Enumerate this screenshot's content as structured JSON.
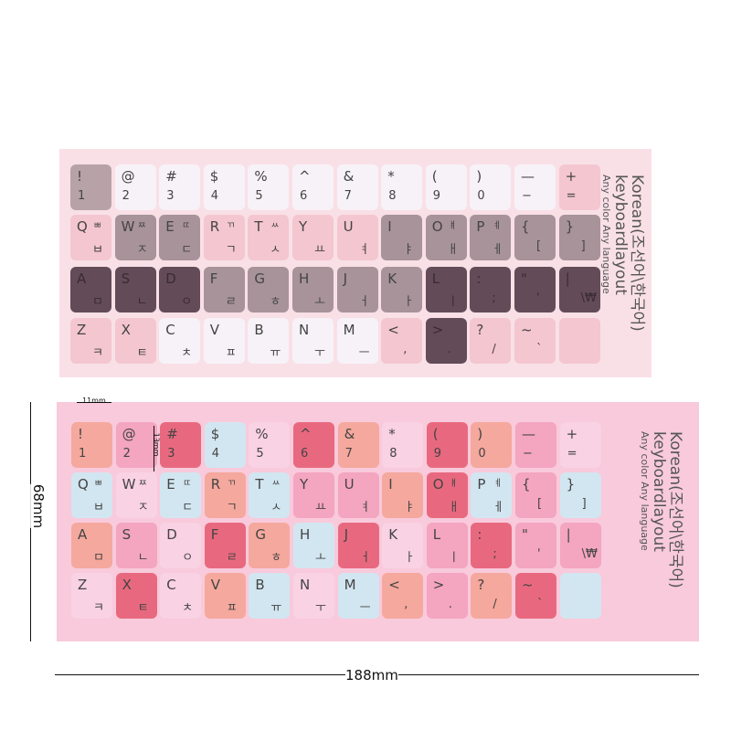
{
  "rows": [
    [
      [
        "!",
        "",
        "1"
      ],
      [
        "@",
        "",
        "2"
      ],
      [
        "#",
        "",
        "3"
      ],
      [
        "$",
        "",
        "4"
      ],
      [
        "%",
        "",
        "5"
      ],
      [
        "^",
        "",
        "6"
      ],
      [
        "&",
        "",
        "7"
      ],
      [
        "*",
        "",
        "8"
      ],
      [
        "(",
        "",
        "9"
      ],
      [
        ")",
        "",
        "0"
      ],
      [
        "—",
        "",
        "−"
      ],
      [
        "+",
        "",
        "="
      ]
    ],
    [
      [
        "Q",
        "ㅃ",
        "ㅂ"
      ],
      [
        "W",
        "ㅉ",
        "ㅈ"
      ],
      [
        "E",
        "ㄸ",
        "ㄷ"
      ],
      [
        "R",
        "ㄲ",
        "ㄱ"
      ],
      [
        "T",
        "ㅆ",
        "ㅅ"
      ],
      [
        "Y",
        "",
        "ㅛ"
      ],
      [
        "U",
        "",
        "ㅕ"
      ],
      [
        "I",
        "",
        "ㅑ"
      ],
      [
        "O",
        "ㅒ",
        "ㅐ"
      ],
      [
        "P",
        "ㅖ",
        "ㅔ"
      ],
      [
        "{",
        "",
        "["
      ],
      [
        "}",
        "",
        "]"
      ]
    ],
    [
      [
        "A",
        "",
        "ㅁ"
      ],
      [
        "S",
        "",
        "ㄴ"
      ],
      [
        "D",
        "",
        "ㅇ"
      ],
      [
        "F",
        "",
        "ㄹ"
      ],
      [
        "G",
        "",
        "ㅎ"
      ],
      [
        "H",
        "",
        "ㅗ"
      ],
      [
        "J",
        "",
        "ㅓ"
      ],
      [
        "K",
        "",
        "ㅏ"
      ],
      [
        "L",
        "",
        "ㅣ"
      ],
      [
        ":",
        "",
        ";"
      ],
      [
        "\"",
        "",
        "'"
      ],
      [
        "|",
        "",
        "\\₩"
      ]
    ],
    [
      [
        "Z",
        "",
        "ㅋ"
      ],
      [
        "X",
        "",
        "ㅌ"
      ],
      [
        "C",
        "",
        "ㅊ"
      ],
      [
        "V",
        "",
        "ㅍ"
      ],
      [
        "B",
        "",
        "ㅠ"
      ],
      [
        "N",
        "",
        "ㅜ"
      ],
      [
        "M",
        "",
        "ㅡ"
      ],
      [
        "<",
        "",
        ","
      ],
      [
        ">",
        "",
        "."
      ],
      [
        "?",
        "",
        "/"
      ],
      [
        "~",
        "",
        "`"
      ],
      [
        "",
        "",
        ""
      ]
    ]
  ],
  "sheet1": {
    "colors": {
      "M": "#b7a2a8",
      "W": "#f7f2f7",
      "P": "#f4c6d0",
      "G": "#a8939a",
      "D": "#634c58"
    },
    "pattern": [
      "MWWWWWWWWWWP",
      "PGGPPPPGGGGG",
      "DDDGGGGGDDDD",
      "PPWWWWWPDPPP"
    ]
  },
  "sheet2": {
    "colors": {
      "S": "#f5a89d",
      "P": "#f4a5c0",
      "R": "#e8697f",
      "B": "#d2e6f1",
      "L": "#f9d2e3"
    },
    "pattern": [
      "SPRBLRSLRSPL",
      "BLBSBPPSRBPB",
      "SPLRSBRLPRPP",
      "LRLSBLBSPSRB"
    ]
  },
  "label": {
    "title": "Korean(조선어\\한국어)",
    "subtitle": "keyboardlayout",
    "note": "Any color Any language"
  },
  "dimensions": {
    "key_width": "11mm",
    "key_height": "13mm",
    "sheet_height": "68mm",
    "sheet_width": "188mm"
  }
}
